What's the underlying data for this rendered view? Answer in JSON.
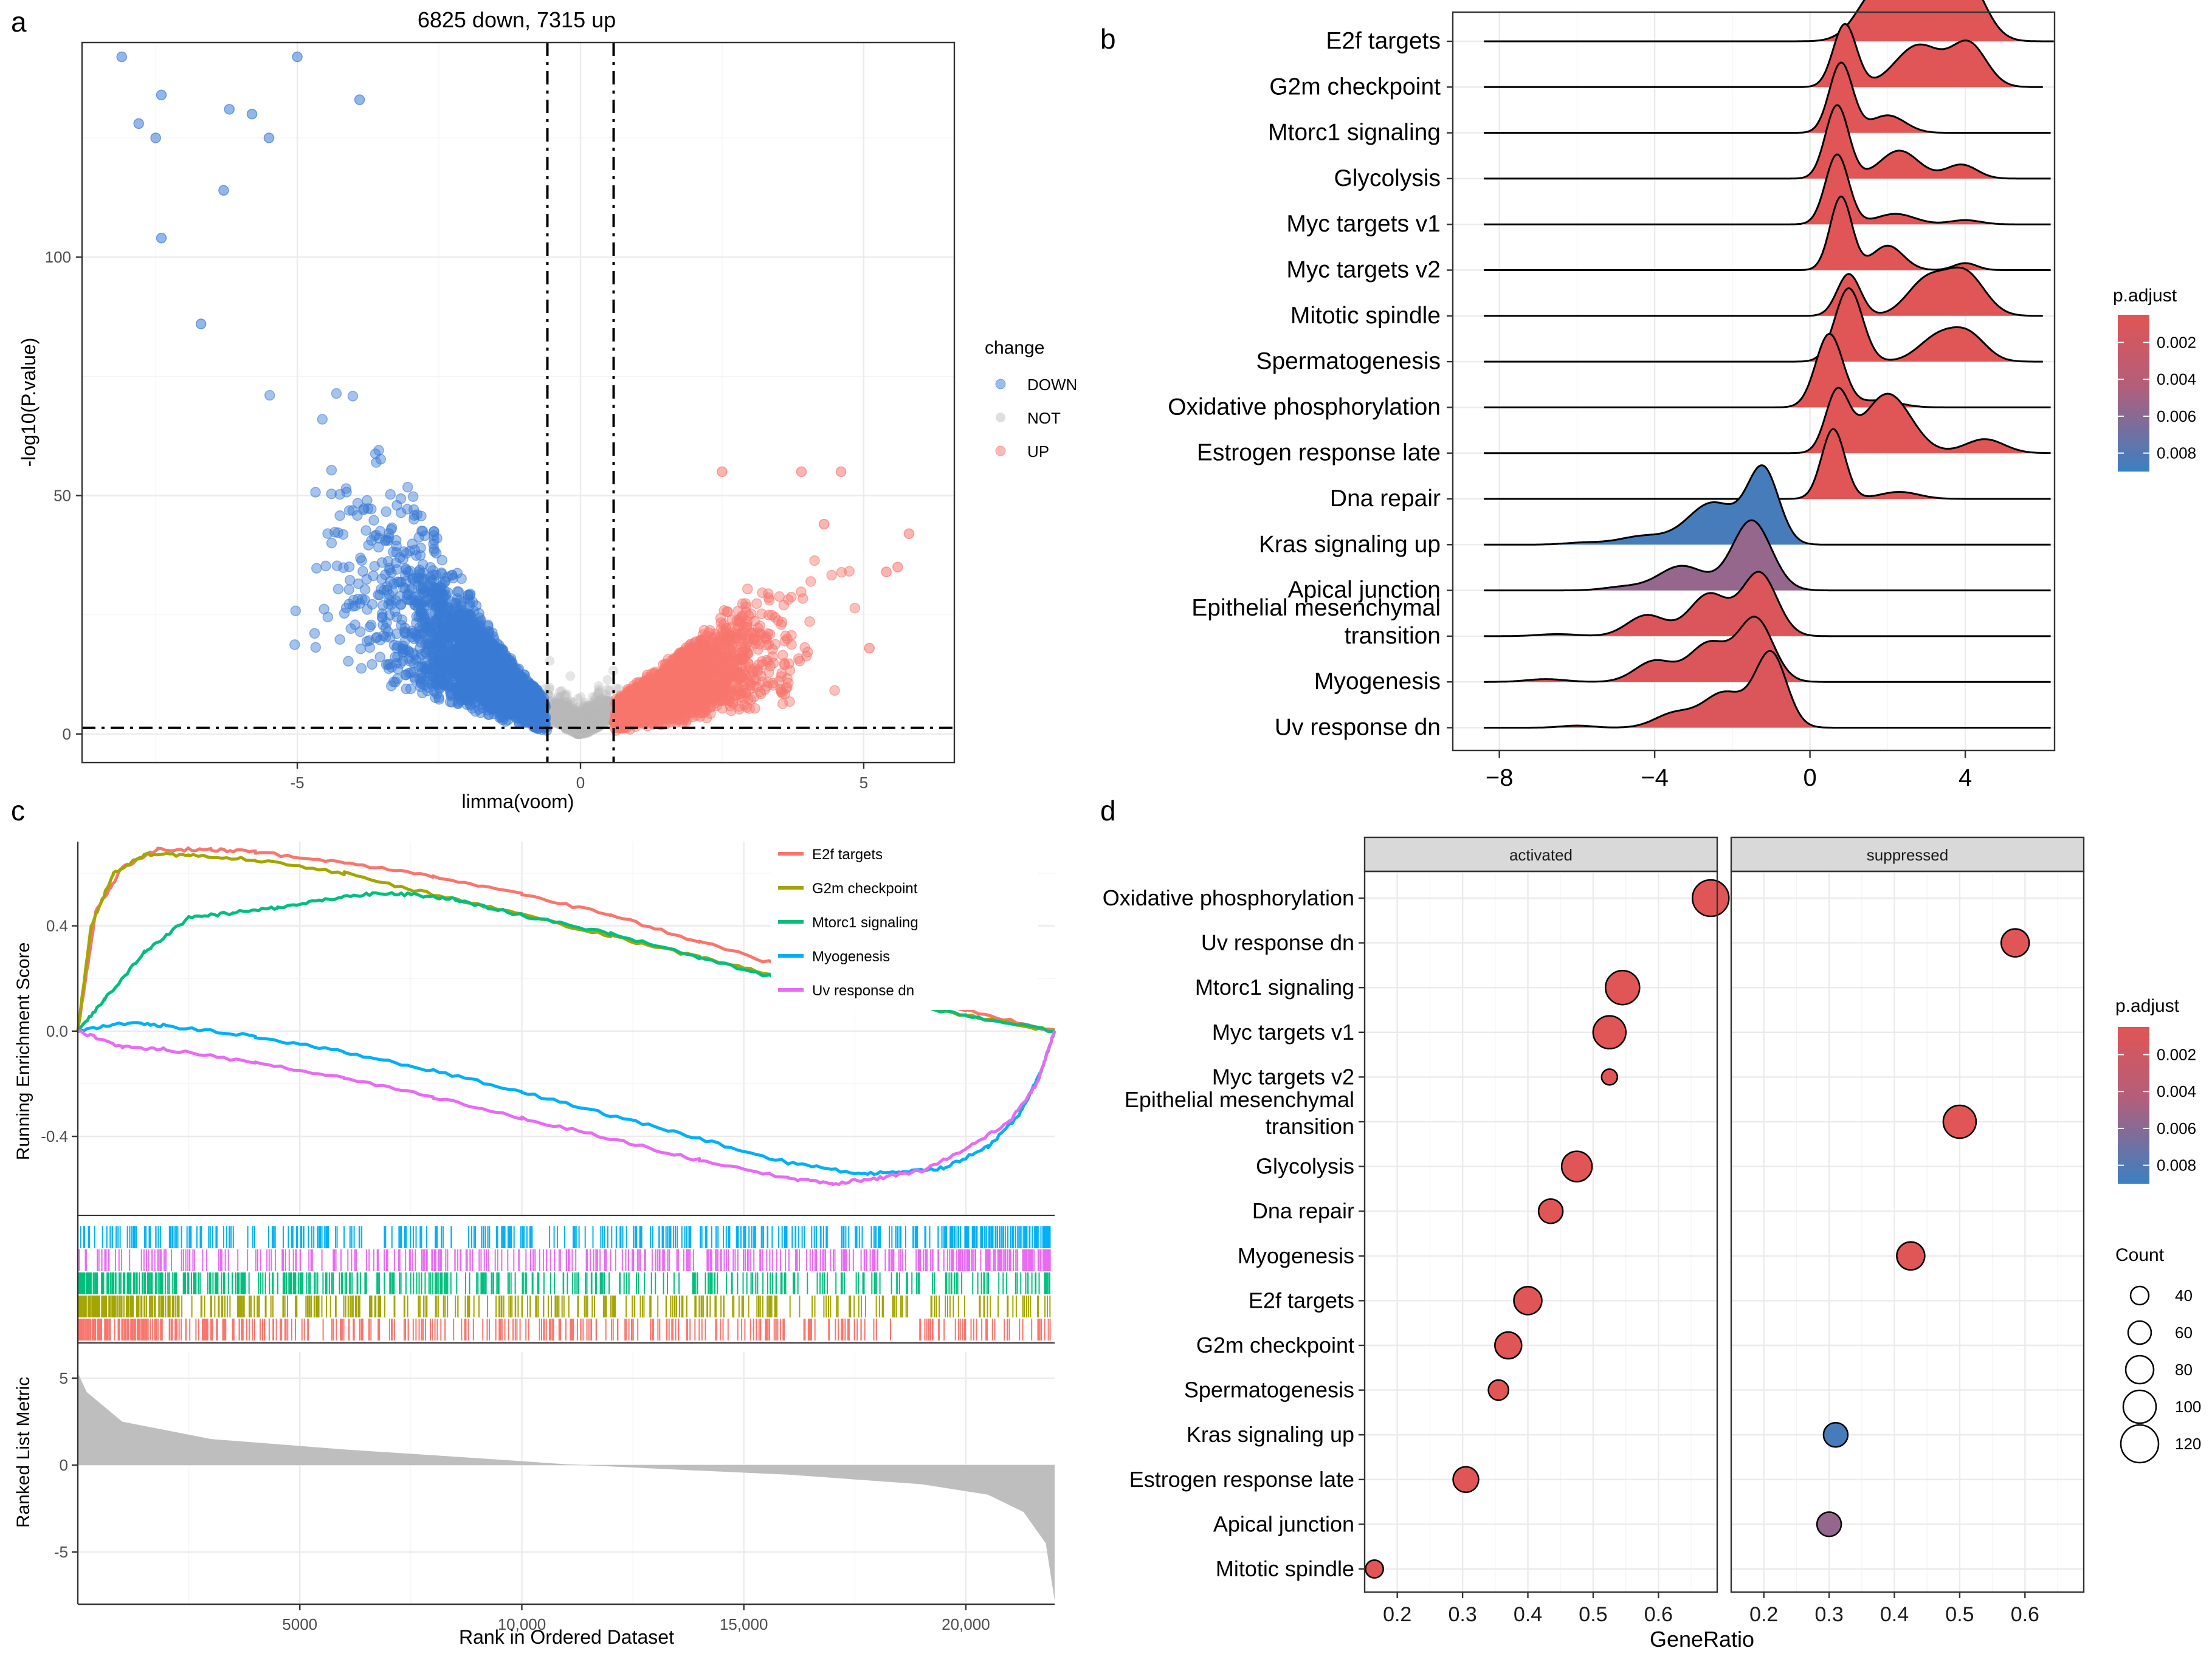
{
  "panel_letters": {
    "a": "a",
    "b": "b",
    "c": "c",
    "d": "d"
  },
  "chart_data": [
    {
      "panel": "a",
      "type": "scatter",
      "title": "6825 down, 7315 up",
      "xlabel": "limma(voom)",
      "ylabel": "-log10(P.value)",
      "xlim": [
        -8.8,
        6.6
      ],
      "ylim": [
        -6,
        145
      ],
      "xticks": [
        -5,
        0,
        5
      ],
      "xtick_labels": [
        "-5",
        "0",
        "5"
      ],
      "yticks": [
        0,
        50,
        100
      ],
      "ytick_labels": [
        "0",
        "50",
        "100"
      ],
      "thresholds": {
        "logfc": [
          -0.585,
          0.585
        ],
        "neglog10p": 1.3
      },
      "legend": {
        "title": "change",
        "entries": [
          "DOWN",
          "NOT",
          "UP"
        ],
        "position": "right"
      },
      "colors": {
        "DOWN": "#3a7bd5",
        "NOT": "#b8b8b8",
        "UP": "#f8766d"
      },
      "counts": {
        "down": 6825,
        "up": 7315
      },
      "highlight_points": [
        {
          "x": -8.1,
          "y": 142,
          "change": "DOWN"
        },
        {
          "x": -7.8,
          "y": 128,
          "change": "DOWN"
        },
        {
          "x": -7.4,
          "y": 134,
          "change": "DOWN"
        },
        {
          "x": -7.5,
          "y": 125,
          "change": "DOWN"
        },
        {
          "x": -7.4,
          "y": 104,
          "change": "DOWN"
        },
        {
          "x": -6.2,
          "y": 131,
          "change": "DOWN"
        },
        {
          "x": -5.8,
          "y": 130,
          "change": "DOWN"
        },
        {
          "x": -5.5,
          "y": 125,
          "change": "DOWN"
        },
        {
          "x": -5.0,
          "y": 142,
          "change": "DOWN"
        },
        {
          "x": -3.9,
          "y": 133,
          "change": "DOWN"
        },
        {
          "x": -6.3,
          "y": 114,
          "change": "DOWN"
        },
        {
          "x": -6.7,
          "y": 86,
          "change": "DOWN"
        },
        {
          "x": 5.8,
          "y": 42,
          "change": "UP"
        },
        {
          "x": 5.6,
          "y": 35,
          "change": "UP"
        },
        {
          "x": 5.4,
          "y": 34,
          "change": "UP"
        },
        {
          "x": 4.6,
          "y": 55,
          "change": "UP"
        },
        {
          "x": 3.9,
          "y": 55,
          "change": "UP"
        },
        {
          "x": 2.5,
          "y": 55,
          "change": "UP"
        },
        {
          "x": 5.1,
          "y": 18,
          "change": "UP"
        },
        {
          "x": 4.3,
          "y": 44,
          "change": "UP"
        }
      ]
    },
    {
      "panel": "b",
      "type": "area",
      "subtype": "ridgeline",
      "xlim": [
        -9.2,
        6.3
      ],
      "xticks": [
        -8,
        -4,
        0,
        4
      ],
      "xtick_labels": [
        "−8",
        "−4",
        "0",
        "4"
      ],
      "legend": {
        "title": "p.adjust",
        "ticks": [
          "0.002",
          "0.004",
          "0.006",
          "0.008"
        ],
        "position": "right"
      },
      "gradient": {
        "low": "#e05555",
        "high": "#3a80c2"
      },
      "pathways": [
        {
          "name": "E2f targets",
          "p_adjust": 0.0001,
          "range": [
            -8.4,
            6.3
          ],
          "peaks": [
            [
              1.8,
              0.75,
              0.55
            ],
            [
              4.0,
              0.85,
              0.5
            ],
            [
              3.0,
              0.55,
              0.6
            ]
          ]
        },
        {
          "name": "G2m checkpoint",
          "p_adjust": 0.0001,
          "range": [
            -8.4,
            6.0
          ],
          "peaks": [
            [
              0.9,
              0.9,
              0.3
            ],
            [
              2.8,
              0.6,
              0.6
            ],
            [
              4.1,
              0.6,
              0.45
            ]
          ]
        },
        {
          "name": "Mtorc1 signaling",
          "p_adjust": 0.0001,
          "range": [
            -8.4,
            6.2
          ],
          "peaks": [
            [
              0.8,
              1.0,
              0.3
            ],
            [
              2.0,
              0.25,
              0.45
            ]
          ]
        },
        {
          "name": "Glycolysis",
          "p_adjust": 0.0001,
          "range": [
            -8.4,
            6.2
          ],
          "peaks": [
            [
              0.7,
              1.05,
              0.3
            ],
            [
              2.3,
              0.4,
              0.5
            ],
            [
              3.9,
              0.2,
              0.4
            ]
          ]
        },
        {
          "name": "Myc targets v1",
          "p_adjust": 0.0001,
          "range": [
            -8.4,
            6.2
          ],
          "peaks": [
            [
              0.7,
              1.0,
              0.3
            ],
            [
              2.2,
              0.15,
              0.5
            ],
            [
              4.0,
              0.06,
              0.4
            ]
          ]
        },
        {
          "name": "Myc targets v2",
          "p_adjust": 0.0001,
          "range": [
            -8.4,
            6.2
          ],
          "peaks": [
            [
              0.8,
              1.05,
              0.28
            ],
            [
              2.0,
              0.35,
              0.4
            ],
            [
              4.0,
              0.1,
              0.3
            ]
          ]
        },
        {
          "name": "Mitotic spindle",
          "p_adjust": 0.0001,
          "range": [
            -8.4,
            6.0
          ],
          "peaks": [
            [
              1.0,
              0.6,
              0.3
            ],
            [
              3.0,
              0.5,
              0.5
            ],
            [
              4.0,
              0.6,
              0.5
            ]
          ]
        },
        {
          "name": "Spermatogenesis",
          "p_adjust": 0.0001,
          "range": [
            -8.4,
            6.0
          ],
          "peaks": [
            [
              1.0,
              1.05,
              0.35
            ],
            [
              3.3,
              0.35,
              0.5
            ],
            [
              4.1,
              0.35,
              0.45
            ]
          ]
        },
        {
          "name": "Oxidative phosphorylation",
          "p_adjust": 0.0001,
          "range": [
            -8.4,
            6.2
          ],
          "peaks": [
            [
              0.5,
              1.05,
              0.35
            ],
            [
              1.8,
              0.1,
              0.5
            ]
          ]
        },
        {
          "name": "Estrogen response late",
          "p_adjust": 0.0001,
          "range": [
            -8.4,
            6.2
          ],
          "peaks": [
            [
              0.7,
              0.85,
              0.3
            ],
            [
              2.0,
              0.85,
              0.6
            ],
            [
              4.5,
              0.2,
              0.5
            ]
          ]
        },
        {
          "name": "Dna repair",
          "p_adjust": 0.0001,
          "range": [
            -8.4,
            6.2
          ],
          "peaks": [
            [
              0.6,
              1.0,
              0.3
            ],
            [
              2.3,
              0.1,
              0.5
            ]
          ]
        },
        {
          "name": "Kras signaling up",
          "p_adjust": 0.0085,
          "range": [
            -8.4,
            6.2
          ],
          "peaks": [
            [
              -1.2,
              1.05,
              0.4
            ],
            [
              -2.5,
              0.6,
              0.65
            ],
            [
              -4.3,
              0.12,
              0.6
            ],
            [
              -5.8,
              0.03,
              0.5
            ]
          ]
        },
        {
          "name": "Apical junction",
          "p_adjust": 0.0055,
          "range": [
            -8.4,
            6.2
          ],
          "peaks": [
            [
              -1.5,
              1.0,
              0.5
            ],
            [
              -3.3,
              0.35,
              0.6
            ],
            [
              -4.8,
              0.05,
              0.5
            ]
          ]
        },
        {
          "name": "Epithelial mesenchymal transition",
          "p_adjust": 0.001,
          "range": [
            -8.4,
            6.2
          ],
          "peaks": [
            [
              -1.3,
              0.9,
              0.45
            ],
            [
              -2.6,
              0.6,
              0.5
            ],
            [
              -4.2,
              0.3,
              0.5
            ],
            [
              -6.5,
              0.03,
              0.5
            ]
          ]
        },
        {
          "name": "Myogenesis",
          "p_adjust": 0.001,
          "range": [
            -8.4,
            6.2
          ],
          "peaks": [
            [
              -1.4,
              0.9,
              0.45
            ],
            [
              -2.6,
              0.55,
              0.5
            ],
            [
              -4.0,
              0.3,
              0.5
            ],
            [
              -6.8,
              0.04,
              0.5
            ]
          ]
        },
        {
          "name": "Uv response dn",
          "p_adjust": 0.001,
          "range": [
            -8.4,
            6.2
          ],
          "peaks": [
            [
              -1.0,
              1.05,
              0.4
            ],
            [
              -2.2,
              0.5,
              0.55
            ],
            [
              -3.5,
              0.2,
              0.5
            ],
            [
              -6.0,
              0.03,
              0.4
            ]
          ]
        }
      ]
    },
    {
      "panel": "c",
      "type": "line",
      "subtype": "gsea",
      "xlabel": "Rank in Ordered Dataset",
      "ylabel_top": "Running Enrichment Score",
      "ylabel_bottom": "Ranked List Metric",
      "xlim": [
        0,
        22000
      ],
      "es_ylim": [
        -0.7,
        0.72
      ],
      "metric_ylim": [
        -8,
        6.5
      ],
      "xticks": [
        5000,
        10000,
        15000,
        20000
      ],
      "xtick_labels": [
        "5000",
        "10,000",
        "15,000",
        "20,000"
      ],
      "es_yticks": [
        -0.4,
        0.0,
        0.4
      ],
      "es_ytick_labels": [
        "-0.4",
        "0.0",
        "0.4"
      ],
      "metric_yticks": [
        -5,
        0,
        5
      ],
      "metric_ytick_labels": [
        "-5",
        "0",
        "5"
      ],
      "legend_position": "top-right",
      "series": [
        {
          "name": "E2f targets",
          "color": "#f8766d",
          "x": [
            0,
            400,
            1000,
            1800,
            3000,
            4000,
            6000,
            8000,
            10000,
            12000,
            14000,
            16000,
            18000,
            20000,
            22000
          ],
          "y": [
            0,
            0.45,
            0.62,
            0.69,
            0.69,
            0.68,
            0.64,
            0.59,
            0.52,
            0.44,
            0.34,
            0.24,
            0.16,
            0.08,
            0.0
          ]
        },
        {
          "name": "G2m checkpoint",
          "color": "#a3a500",
          "x": [
            0,
            300,
            800,
            1500,
            2500,
            4000,
            6000,
            8000,
            10000,
            12000,
            14000,
            16000,
            18000,
            20000,
            22000
          ],
          "y": [
            0,
            0.4,
            0.6,
            0.67,
            0.67,
            0.65,
            0.6,
            0.52,
            0.44,
            0.36,
            0.28,
            0.2,
            0.13,
            0.06,
            0.0
          ]
        },
        {
          "name": "Mtorc1 signaling",
          "color": "#00bf7d",
          "x": [
            0,
            600,
            1500,
            2500,
            3500,
            4500,
            5500,
            6500,
            7500,
            8500,
            10000,
            12000,
            14000,
            16000,
            18000,
            20000,
            22000
          ],
          "y": [
            0,
            0.12,
            0.3,
            0.43,
            0.45,
            0.47,
            0.5,
            0.52,
            0.52,
            0.5,
            0.44,
            0.37,
            0.28,
            0.19,
            0.12,
            0.06,
            0.0
          ]
        },
        {
          "name": "Myogenesis",
          "color": "#00b0f6",
          "x": [
            0,
            1000,
            2000,
            4000,
            6000,
            8000,
            10000,
            12000,
            14000,
            16000,
            17500,
            18500,
            19500,
            20500,
            21200,
            21700,
            22000
          ],
          "y": [
            0,
            0.03,
            0.02,
            -0.02,
            -0.08,
            -0.15,
            -0.23,
            -0.32,
            -0.41,
            -0.5,
            -0.54,
            -0.54,
            -0.52,
            -0.44,
            -0.32,
            -0.15,
            0.0
          ]
        },
        {
          "name": "Uv response dn",
          "color": "#e76bf3",
          "x": [
            0,
            1000,
            2000,
            4000,
            6000,
            8000,
            10000,
            12000,
            14000,
            16000,
            17000,
            18000,
            19000,
            20000,
            21000,
            21600,
            22000
          ],
          "y": [
            0,
            -0.06,
            -0.07,
            -0.12,
            -0.18,
            -0.25,
            -0.33,
            -0.41,
            -0.49,
            -0.56,
            -0.58,
            -0.56,
            -0.53,
            -0.45,
            -0.34,
            -0.2,
            0.0
          ]
        }
      ],
      "ranked_metric": {
        "x": [
          0,
          200,
          1000,
          3000,
          6000,
          9000,
          11000,
          13000,
          16000,
          19000,
          20500,
          21300,
          21800,
          22000
        ],
        "y": [
          5.3,
          4.2,
          2.5,
          1.5,
          0.9,
          0.4,
          0.05,
          -0.2,
          -0.55,
          -1.1,
          -1.7,
          -2.7,
          -4.5,
          -7.8
        ]
      }
    },
    {
      "panel": "d",
      "type": "scatter",
      "subtype": "dotplot",
      "xlabel": "GeneRatio",
      "facets": [
        "activated",
        "suppressed"
      ],
      "xlim": [
        0.15,
        0.69
      ],
      "xticks": [
        0.2,
        0.3,
        0.4,
        0.5,
        0.6
      ],
      "xtick_labels": [
        "0.2",
        "0.3",
        "0.4",
        "0.5",
        "0.6"
      ],
      "categories": [
        "Oxidative phosphorylation",
        "Uv response dn",
        "Mtorc1 signaling",
        "Myc targets v1",
        "Myc targets v2",
        "Epithelial mesenchymal transition",
        "Glycolysis",
        "Dna repair",
        "Myogenesis",
        "E2f targets",
        "G2m checkpoint",
        "Spermatogenesis",
        "Kras signaling up",
        "Estrogen response late",
        "Apical junction",
        "Mitotic spindle"
      ],
      "points": [
        {
          "term": "Oxidative phosphorylation",
          "facet": "activated",
          "gene_ratio": 0.68,
          "count": 115,
          "p_adjust": 0.0002
        },
        {
          "term": "Uv response dn",
          "facet": "suppressed",
          "gene_ratio": 0.585,
          "count": 80,
          "p_adjust": 0.0004
        },
        {
          "term": "Mtorc1 signaling",
          "facet": "activated",
          "gene_ratio": 0.545,
          "count": 105,
          "p_adjust": 0.0002
        },
        {
          "term": "Myc targets v1",
          "facet": "activated",
          "gene_ratio": 0.525,
          "count": 100,
          "p_adjust": 0.0002
        },
        {
          "term": "Myc targets v2",
          "facet": "activated",
          "gene_ratio": 0.525,
          "count": 30,
          "p_adjust": 0.0002
        },
        {
          "term": "Epithelial mesenchymal transition",
          "facet": "suppressed",
          "gene_ratio": 0.5,
          "count": 100,
          "p_adjust": 0.0004
        },
        {
          "term": "Glycolysis",
          "facet": "activated",
          "gene_ratio": 0.475,
          "count": 90,
          "p_adjust": 0.0002
        },
        {
          "term": "Dna repair",
          "facet": "activated",
          "gene_ratio": 0.435,
          "count": 65,
          "p_adjust": 0.0003
        },
        {
          "term": "Myogenesis",
          "facet": "suppressed",
          "gene_ratio": 0.425,
          "count": 80,
          "p_adjust": 0.0004
        },
        {
          "term": "E2f targets",
          "facet": "activated",
          "gene_ratio": 0.4,
          "count": 80,
          "p_adjust": 0.0002
        },
        {
          "term": "G2m checkpoint",
          "facet": "activated",
          "gene_ratio": 0.37,
          "count": 75,
          "p_adjust": 0.0002
        },
        {
          "term": "Spermatogenesis",
          "facet": "activated",
          "gene_ratio": 0.355,
          "count": 48,
          "p_adjust": 0.0003
        },
        {
          "term": "Kras signaling up",
          "facet": "suppressed",
          "gene_ratio": 0.31,
          "count": 65,
          "p_adjust": 0.0085
        },
        {
          "term": "Estrogen response late",
          "facet": "activated",
          "gene_ratio": 0.305,
          "count": 70,
          "p_adjust": 0.0003
        },
        {
          "term": "Apical junction",
          "facet": "suppressed",
          "gene_ratio": 0.3,
          "count": 65,
          "p_adjust": 0.0055
        },
        {
          "term": "Mitotic spindle",
          "facet": "activated",
          "gene_ratio": 0.165,
          "count": 38,
          "p_adjust": 0.0003
        }
      ],
      "legend_padj": {
        "title": "p.adjust",
        "ticks": [
          "0.002",
          "0.004",
          "0.006",
          "0.008"
        ]
      },
      "legend_count": {
        "title": "Count",
        "values": [
          40,
          60,
          80,
          100,
          120
        ],
        "labels": [
          "40",
          "60",
          "80",
          "100",
          "120"
        ]
      }
    }
  ]
}
